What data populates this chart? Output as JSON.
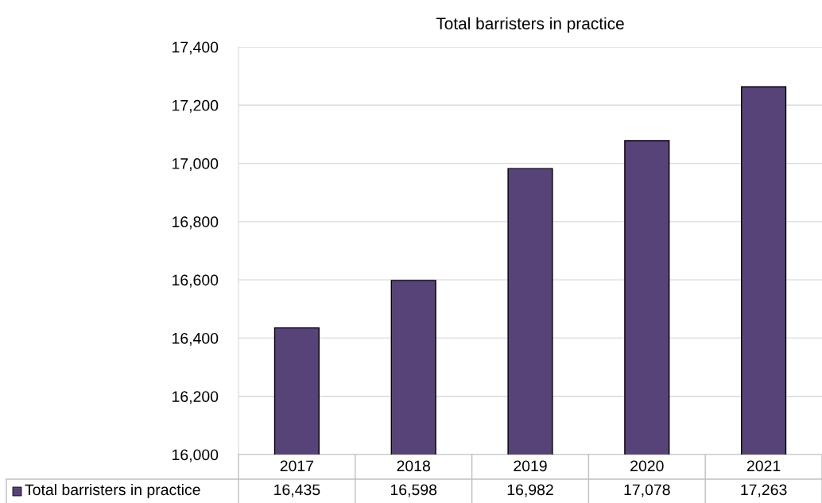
{
  "chart_data": {
    "type": "bar",
    "title": "Total barristers in practice",
    "categories": [
      "2017",
      "2018",
      "2019",
      "2020",
      "2021"
    ],
    "series": [
      {
        "name": "Total barristers in practice",
        "color": "#584378",
        "values": [
          16435,
          16598,
          16982,
          17078,
          17263
        ]
      }
    ],
    "ylim": [
      16000,
      17400
    ],
    "yticks": [
      {
        "value": 16000,
        "label": "16,000"
      },
      {
        "value": 16200,
        "label": "16,200"
      },
      {
        "value": 16400,
        "label": "16,400"
      },
      {
        "value": 16600,
        "label": "16,600"
      },
      {
        "value": 16800,
        "label": "16,800"
      },
      {
        "value": 17000,
        "label": "17,000"
      },
      {
        "value": 17200,
        "label": "17,200"
      },
      {
        "value": 17400,
        "label": "17,400"
      }
    ],
    "value_labels": [
      "16,435",
      "16,598",
      "16,982",
      "17,078",
      "17,263"
    ],
    "grid": "y",
    "legend": "bottom left"
  }
}
